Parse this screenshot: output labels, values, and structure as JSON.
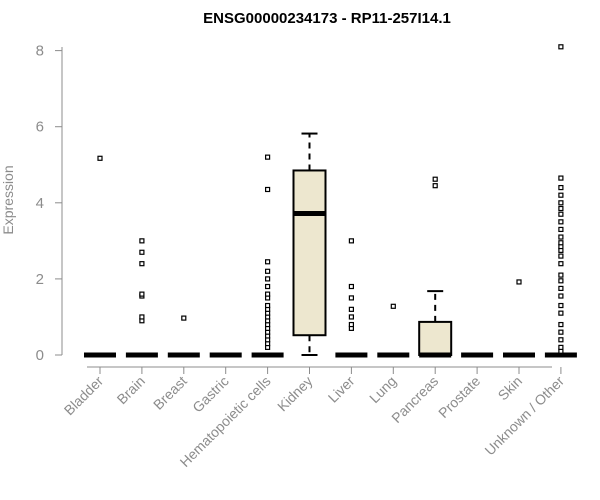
{
  "chart_data": {
    "type": "box",
    "title": "ENSG00000234173 - RP11-257I14.1",
    "xlabel": "",
    "ylabel": "Expression",
    "ylim": [
      0,
      8.2
    ],
    "yticks": [
      0,
      2,
      4,
      6,
      8
    ],
    "grid": false,
    "box_fill": "#ede7cf",
    "categories": [
      "Bladder",
      "Brain",
      "Breast",
      "Gastric",
      "Hematopoietic cells",
      "Kidney",
      "Liver",
      "Lung",
      "Pancreas",
      "Prostate",
      "Skin",
      "Unknown / Other"
    ],
    "boxes": [
      {
        "q1": 0,
        "median": 0,
        "q3": 0,
        "whisker_low": 0,
        "whisker_high": 0,
        "outliers": [
          5.17
        ]
      },
      {
        "q1": 0,
        "median": 0,
        "q3": 0,
        "whisker_low": 0,
        "whisker_high": 0,
        "outliers": [
          0.9,
          1.0,
          1.55,
          1.6,
          2.4,
          2.7,
          3.0
        ]
      },
      {
        "q1": 0,
        "median": 0,
        "q3": 0,
        "whisker_low": 0,
        "whisker_high": 0,
        "outliers": [
          0.97
        ]
      },
      {
        "q1": 0,
        "median": 0,
        "q3": 0,
        "whisker_low": 0,
        "whisker_high": 0,
        "outliers": []
      },
      {
        "q1": 0,
        "median": 0,
        "q3": 0,
        "whisker_low": 0,
        "whisker_high": 0,
        "outliers": [
          0.2,
          0.3,
          0.4,
          0.5,
          0.6,
          0.7,
          0.8,
          0.9,
          1.0,
          1.1,
          1.2,
          1.3,
          1.5,
          1.6,
          1.8,
          2.0,
          2.2,
          2.45,
          4.35,
          5.2
        ]
      },
      {
        "q1": 0.52,
        "median": 3.72,
        "q3": 4.85,
        "whisker_low": 0,
        "whisker_high": 5.82,
        "outliers": []
      },
      {
        "q1": 0,
        "median": 0,
        "q3": 0,
        "whisker_low": 0,
        "whisker_high": 0,
        "outliers": [
          0.7,
          0.8,
          1.0,
          1.2,
          1.5,
          1.8,
          3.0
        ]
      },
      {
        "q1": 0,
        "median": 0,
        "q3": 0,
        "whisker_low": 0,
        "whisker_high": 0,
        "outliers": [
          1.28
        ]
      },
      {
        "q1": 0,
        "median": 0,
        "q3": 0.87,
        "whisker_low": 0,
        "whisker_high": 1.68,
        "outliers": [
          4.45,
          4.62
        ]
      },
      {
        "q1": 0,
        "median": 0,
        "q3": 0,
        "whisker_low": 0,
        "whisker_high": 0,
        "outliers": []
      },
      {
        "q1": 0,
        "median": 0,
        "q3": 0,
        "whisker_low": 0,
        "whisker_high": 0,
        "outliers": [
          1.92
        ]
      },
      {
        "q1": 0,
        "median": 0,
        "q3": 0,
        "whisker_low": 0,
        "whisker_high": 0,
        "outliers": [
          0.1,
          0.2,
          0.4,
          0.6,
          0.8,
          1.1,
          1.3,
          1.55,
          1.75,
          1.95,
          2.1,
          2.4,
          2.6,
          2.75,
          2.85,
          2.95,
          3.1,
          3.3,
          3.5,
          3.7,
          3.85,
          4.0,
          4.2,
          4.4,
          4.65,
          8.1
        ]
      }
    ]
  }
}
